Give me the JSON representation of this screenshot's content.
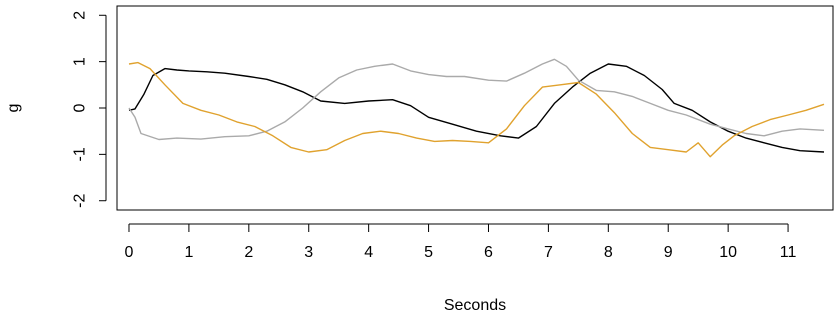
{
  "chart_data": {
    "type": "line",
    "title": "",
    "xlabel": "Seconds",
    "ylabel": "g",
    "xlim": [
      -0.2,
      11.75
    ],
    "ylim": [
      -2.2,
      2.2
    ],
    "x_ticks": [
      0,
      1,
      2,
      3,
      4,
      5,
      6,
      7,
      8,
      9,
      10,
      11
    ],
    "y_ticks": [
      -2,
      -1,
      0,
      1,
      2
    ],
    "grid": false,
    "legend": "none",
    "series": [
      {
        "color": "#000000",
        "points": [
          [
            0,
            -0.05
          ],
          [
            0.1,
            -0.02
          ],
          [
            0.25,
            0.3
          ],
          [
            0.4,
            0.7
          ],
          [
            0.6,
            0.85
          ],
          [
            0.8,
            0.82
          ],
          [
            1.0,
            0.8
          ],
          [
            1.3,
            0.78
          ],
          [
            1.6,
            0.75
          ],
          [
            2.0,
            0.68
          ],
          [
            2.3,
            0.62
          ],
          [
            2.6,
            0.5
          ],
          [
            2.9,
            0.35
          ],
          [
            3.2,
            0.15
          ],
          [
            3.6,
            0.1
          ],
          [
            4.0,
            0.15
          ],
          [
            4.4,
            0.18
          ],
          [
            4.7,
            0.05
          ],
          [
            5.0,
            -0.2
          ],
          [
            5.4,
            -0.35
          ],
          [
            5.8,
            -0.5
          ],
          [
            6.2,
            -0.6
          ],
          [
            6.5,
            -0.65
          ],
          [
            6.8,
            -0.4
          ],
          [
            7.1,
            0.1
          ],
          [
            7.4,
            0.45
          ],
          [
            7.7,
            0.75
          ],
          [
            8.0,
            0.95
          ],
          [
            8.3,
            0.9
          ],
          [
            8.6,
            0.7
          ],
          [
            8.9,
            0.4
          ],
          [
            9.1,
            0.1
          ],
          [
            9.4,
            -0.05
          ],
          [
            9.7,
            -0.3
          ],
          [
            10.0,
            -0.5
          ],
          [
            10.3,
            -0.65
          ],
          [
            10.6,
            -0.75
          ],
          [
            10.9,
            -0.85
          ],
          [
            11.2,
            -0.92
          ],
          [
            11.6,
            -0.95
          ]
        ]
      },
      {
        "color": "#aaaaaa",
        "points": [
          [
            0,
            0.0
          ],
          [
            0.1,
            -0.2
          ],
          [
            0.2,
            -0.55
          ],
          [
            0.5,
            -0.68
          ],
          [
            0.8,
            -0.65
          ],
          [
            1.2,
            -0.67
          ],
          [
            1.6,
            -0.62
          ],
          [
            2.0,
            -0.6
          ],
          [
            2.3,
            -0.5
          ],
          [
            2.6,
            -0.3
          ],
          [
            2.9,
            0.0
          ],
          [
            3.2,
            0.35
          ],
          [
            3.5,
            0.65
          ],
          [
            3.8,
            0.82
          ],
          [
            4.1,
            0.9
          ],
          [
            4.4,
            0.95
          ],
          [
            4.7,
            0.8
          ],
          [
            5.0,
            0.72
          ],
          [
            5.3,
            0.68
          ],
          [
            5.6,
            0.68
          ],
          [
            6.0,
            0.6
          ],
          [
            6.3,
            0.58
          ],
          [
            6.6,
            0.75
          ],
          [
            6.9,
            0.95
          ],
          [
            7.1,
            1.05
          ],
          [
            7.3,
            0.9
          ],
          [
            7.5,
            0.6
          ],
          [
            7.8,
            0.38
          ],
          [
            8.1,
            0.35
          ],
          [
            8.4,
            0.25
          ],
          [
            8.7,
            0.1
          ],
          [
            9.0,
            -0.05
          ],
          [
            9.3,
            -0.15
          ],
          [
            9.7,
            -0.35
          ],
          [
            10.0,
            -0.45
          ],
          [
            10.3,
            -0.55
          ],
          [
            10.6,
            -0.6
          ],
          [
            10.9,
            -0.5
          ],
          [
            11.2,
            -0.45
          ],
          [
            11.6,
            -0.48
          ]
        ]
      },
      {
        "color": "#e0a22e",
        "points": [
          [
            0,
            0.95
          ],
          [
            0.15,
            0.98
          ],
          [
            0.35,
            0.85
          ],
          [
            0.6,
            0.5
          ],
          [
            0.9,
            0.1
          ],
          [
            1.2,
            -0.05
          ],
          [
            1.5,
            -0.15
          ],
          [
            1.8,
            -0.3
          ],
          [
            2.1,
            -0.4
          ],
          [
            2.4,
            -0.6
          ],
          [
            2.7,
            -0.85
          ],
          [
            3.0,
            -0.95
          ],
          [
            3.3,
            -0.9
          ],
          [
            3.6,
            -0.7
          ],
          [
            3.9,
            -0.55
          ],
          [
            4.2,
            -0.5
          ],
          [
            4.5,
            -0.55
          ],
          [
            4.8,
            -0.65
          ],
          [
            5.1,
            -0.72
          ],
          [
            5.4,
            -0.7
          ],
          [
            5.7,
            -0.72
          ],
          [
            6.0,
            -0.75
          ],
          [
            6.3,
            -0.45
          ],
          [
            6.6,
            0.05
          ],
          [
            6.9,
            0.45
          ],
          [
            7.2,
            0.5
          ],
          [
            7.5,
            0.55
          ],
          [
            7.8,
            0.3
          ],
          [
            8.1,
            -0.1
          ],
          [
            8.4,
            -0.55
          ],
          [
            8.7,
            -0.85
          ],
          [
            9.0,
            -0.9
          ],
          [
            9.3,
            -0.95
          ],
          [
            9.5,
            -0.75
          ],
          [
            9.7,
            -1.05
          ],
          [
            9.9,
            -0.8
          ],
          [
            10.1,
            -0.6
          ],
          [
            10.4,
            -0.4
          ],
          [
            10.7,
            -0.25
          ],
          [
            11.0,
            -0.15
          ],
          [
            11.3,
            -0.05
          ],
          [
            11.6,
            0.08
          ]
        ]
      }
    ]
  }
}
